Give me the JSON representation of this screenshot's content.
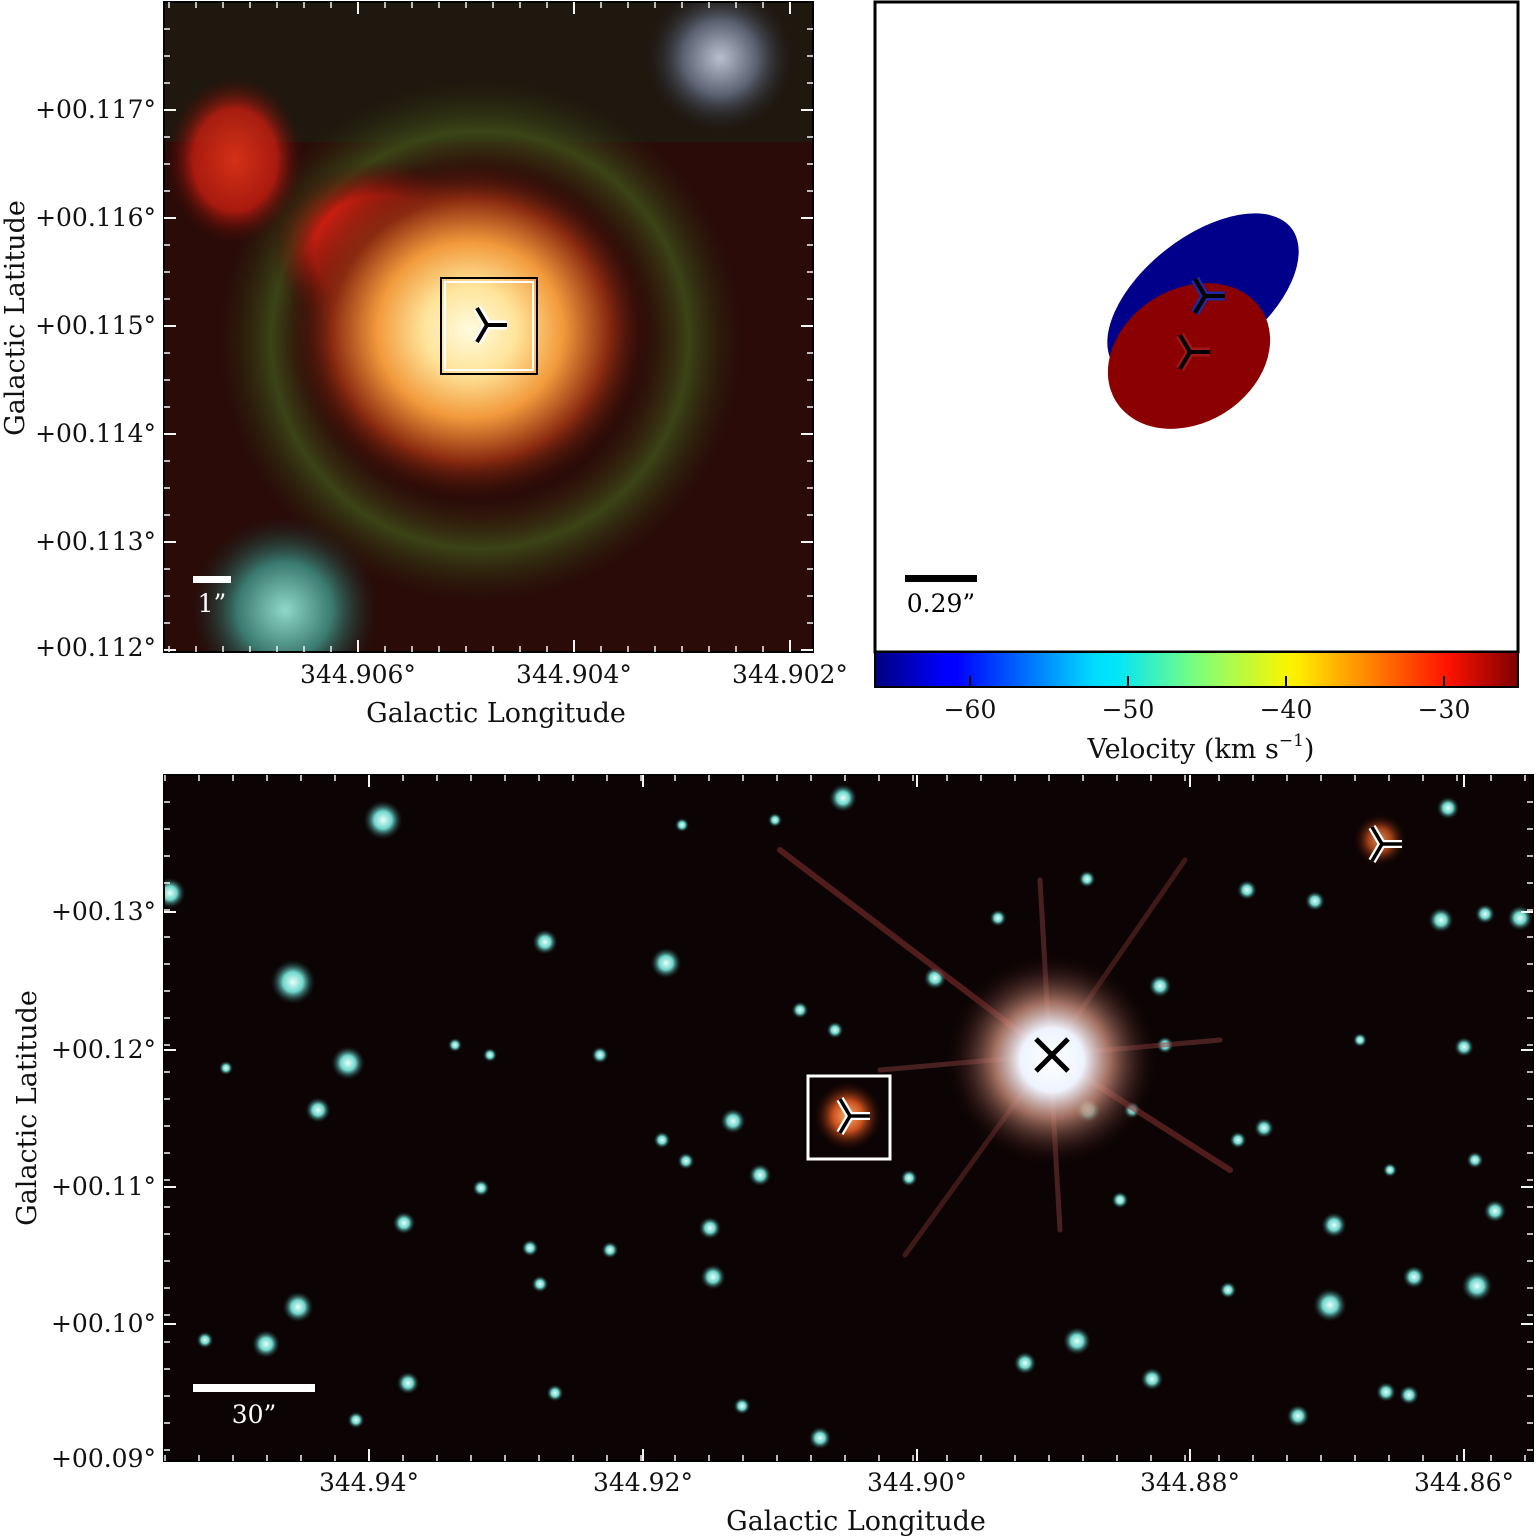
{
  "top_left_panel": {
    "x_ticks": [
      "344.906°",
      "344.904°",
      "344.902°"
    ],
    "y_ticks": [
      "+00.117°",
      "+00.116°",
      "+00.115°",
      "+00.114°",
      "+00.113°",
      "+00.112°"
    ],
    "xlabel": "Galactic Longitude",
    "ylabel": "Galactic Latitude",
    "scalebar_label": "1”"
  },
  "top_right_panel": {
    "scalebar_label": "0.29”",
    "ellipse_colors": {
      "approaching": "#00008b",
      "receding": "#8b0000"
    },
    "colorbar": {
      "ticks": [
        "−60",
        "−50",
        "−40",
        "−30"
      ],
      "label": "Velocity (km s",
      "label_exponent": "−1",
      "label_close": ")",
      "cmap": "jet"
    }
  },
  "bottom_panel": {
    "x_ticks": [
      "344.94°",
      "344.92°",
      "344.90°",
      "344.88°",
      "344.86°"
    ],
    "y_ticks": [
      "+00.13°",
      "+00.12°",
      "+00.11°",
      "+00.10°",
      "+00.09°"
    ],
    "xlabel": "Galactic Longitude",
    "ylabel": "Galactic Latitude",
    "scalebar_label": "30”"
  }
}
